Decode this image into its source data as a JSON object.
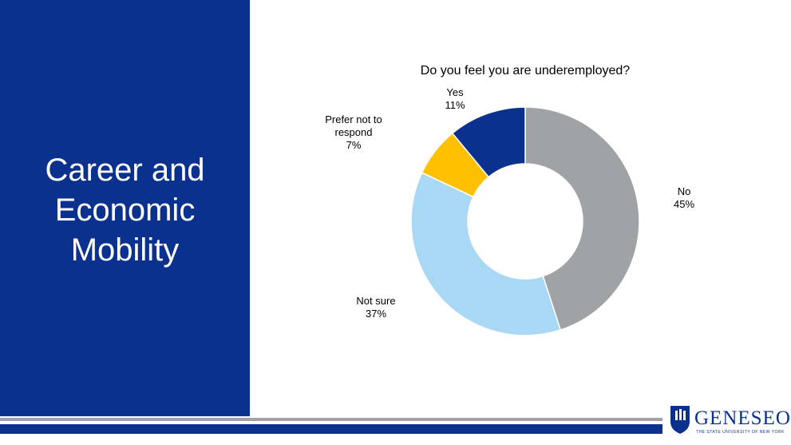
{
  "slide_title": "Career and Economic Mobility",
  "chart_data": {
    "type": "donut",
    "title": "Do you feel you are underemployed?",
    "categories": [
      "No",
      "Not sure",
      "Prefer not to respond",
      "Yes"
    ],
    "values": [
      45,
      37,
      7,
      11
    ],
    "value_labels": [
      "45%",
      "37%",
      "7%",
      "11%"
    ],
    "colors": [
      "#a0a3a5",
      "#a9d8f5",
      "#ffc000",
      "#0b318f"
    ]
  },
  "logo": {
    "name": "GENESEO",
    "tagline": "THE STATE UNIVERSITY OF NEW YORK"
  }
}
